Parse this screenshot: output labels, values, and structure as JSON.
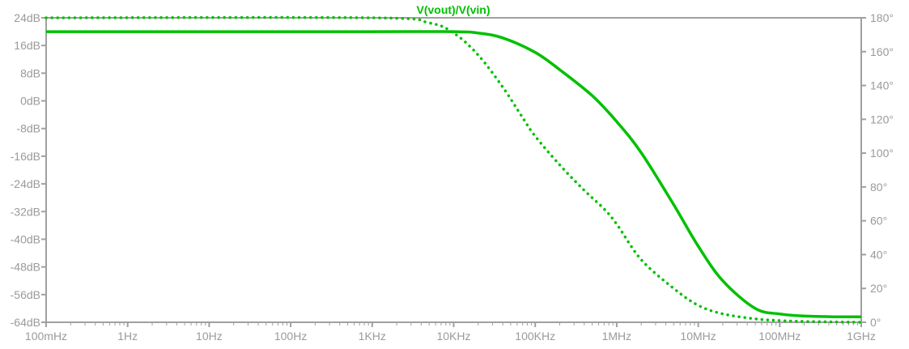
{
  "chart_data": {
    "type": "line",
    "title": "V(vout)/V(vin)",
    "x_scale": "log",
    "xlim": [
      "100mHz",
      "1GHz"
    ],
    "ylim_left": [
      -64,
      24
    ],
    "ylim_right": [
      0,
      180
    ],
    "x_tick_labels": [
      "100mHz",
      "1Hz",
      "10Hz",
      "100Hz",
      "1KHz",
      "10KHz",
      "100KHz",
      "1MHz",
      "10MHz",
      "100MHz",
      "1GHz"
    ],
    "y_left_tick_labels": [
      "24dB",
      "16dB",
      "8dB",
      "0dB",
      "-8dB",
      "-16dB",
      "-24dB",
      "-32dB",
      "-40dB",
      "-48dB",
      "-56dB",
      "-64dB"
    ],
    "y_right_tick_labels": [
      "180°",
      "160°",
      "140°",
      "120°",
      "100°",
      "80°",
      "60°",
      "40°",
      "20°",
      "0°"
    ],
    "grid": false,
    "colors": {
      "trace": "#00c000",
      "axes": "#a0a0a0",
      "tick_text": "#9a9a9a"
    },
    "series": [
      {
        "role": "magnitude",
        "axis": "left",
        "unit": "dB",
        "style": "solid",
        "x": [
          "100mHz",
          "1KHz",
          "10KHz",
          "20KHz",
          "40KHz",
          "100KHz",
          "200KHz",
          "500KHz",
          "1MHz",
          "2MHz",
          "5MHz",
          "10MHz",
          "20MHz",
          "50MHz",
          "100MHz",
          "200MHz",
          "500MHz",
          "1GHz"
        ],
        "y": [
          20,
          20,
          20,
          19.6,
          18.2,
          14,
          9,
          1.5,
          -6,
          -15,
          -30,
          -42,
          -52,
          -60,
          -61.6,
          -62.2,
          -62.4,
          -62.4
        ]
      },
      {
        "role": "phase",
        "axis": "right",
        "unit": "°",
        "style": "dotted",
        "x": [
          "100mHz",
          "1KHz",
          "5KHz",
          "10KHz",
          "20KHz",
          "40KHz",
          "70KHz",
          "100KHz",
          "200KHz",
          "400KHz",
          "700KHz",
          "1MHz",
          "2MHz",
          "5MHz",
          "10MHz",
          "20MHz",
          "50MHz",
          "100MHz",
          "200MHz",
          "500MHz",
          "1GHz"
        ],
        "y": [
          180,
          180,
          177,
          171,
          158,
          139,
          121,
          110,
          93,
          78,
          67,
          58,
          37,
          20,
          10,
          5,
          2,
          1,
          0.5,
          0.2,
          0
        ]
      }
    ]
  }
}
